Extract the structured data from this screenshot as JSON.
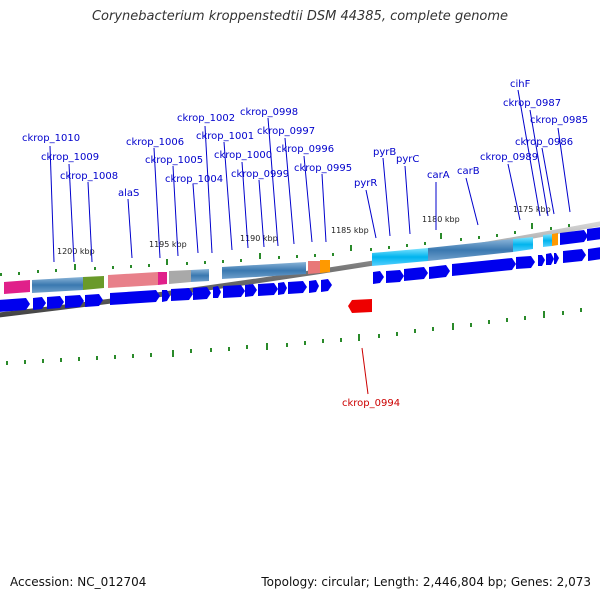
{
  "title": "Corynebacterium kroppenstedtii DSM 44385, complete genome",
  "footer": {
    "accession": "Accession: NC_012704",
    "stats": "Topology: circular; Length: 2,446,804 bp; Genes: 2,073"
  },
  "ruler_labels": [
    "1200 kbp",
    "1195 kbp",
    "1190 kbp",
    "1185 kbp",
    "1180 kbp",
    "1175 kbp"
  ],
  "gene_labels_top": [
    "ckrop_1010",
    "ckrop_1009",
    "ckrop_1008",
    "alaS",
    "ckrop_1006",
    "ckrop_1005",
    "ckrop_1004",
    "ckrop_1002",
    "ckrop_1001",
    "ckrop_1000",
    "ckrop_0999",
    "ckrop_0998",
    "ckrop_0997",
    "ckrop_0996",
    "ckrop_0995",
    "pyrR",
    "pyrB",
    "pyrC",
    "carA",
    "carB",
    "ckrop_0989",
    "cihF",
    "ckrop_0987",
    "ckrop_0986",
    "ckrop_0985"
  ],
  "gene_label_bottom": "ckrop_0994",
  "colors": {
    "label_blue": "#0000cc",
    "label_red": "#cc0000",
    "arrow_blue": "#0000ee",
    "highlight_red": "#ee0000",
    "tick_green": "#228b22",
    "backbone": "#888888"
  }
}
